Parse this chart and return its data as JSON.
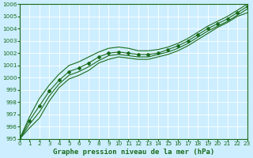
{
  "title": "Graphe pression niveau de la mer (hPa)",
  "bg_color": "#cceeff",
  "grid_color": "#ffffff",
  "line_color": "#1a6b1a",
  "xlim": [
    0,
    23
  ],
  "ylim": [
    995,
    1006
  ],
  "xticks": [
    0,
    1,
    2,
    3,
    4,
    5,
    6,
    7,
    8,
    9,
    10,
    11,
    12,
    13,
    14,
    15,
    16,
    17,
    18,
    19,
    20,
    21,
    22,
    23
  ],
  "yticks": [
    995,
    996,
    997,
    998,
    999,
    1000,
    1001,
    1002,
    1003,
    1004,
    1005,
    1006
  ],
  "series": [
    [
      995.0,
      995.9,
      996.7,
      998.1,
      999.2,
      999.9,
      1000.2,
      1000.6,
      1001.2,
      1001.5,
      1001.7,
      1001.6,
      1001.5,
      1001.5,
      1001.7,
      1001.9,
      1002.2,
      1002.6,
      1003.1,
      1003.6,
      1004.1,
      1004.5,
      1005.0,
      1005.3
    ],
    [
      995.0,
      996.2,
      997.2,
      998.5,
      999.5,
      1000.2,
      1000.5,
      1000.9,
      1001.4,
      1001.8,
      1001.9,
      1001.8,
      1001.7,
      1001.7,
      1001.9,
      1002.1,
      1002.4,
      1002.8,
      1003.3,
      1003.8,
      1004.2,
      1004.6,
      1005.1,
      1005.6
    ],
    [
      995.0,
      996.5,
      997.7,
      998.9,
      999.8,
      1000.5,
      1000.8,
      1001.2,
      1001.7,
      1002.0,
      1002.1,
      1002.0,
      1001.9,
      1001.9,
      1002.0,
      1002.3,
      1002.6,
      1003.0,
      1003.5,
      1004.0,
      1004.4,
      1004.8,
      1005.3,
      1005.8
    ],
    [
      995.0,
      996.8,
      998.3,
      999.4,
      1000.3,
      1001.0,
      1001.3,
      1001.7,
      1002.1,
      1002.4,
      1002.5,
      1002.4,
      1002.2,
      1002.2,
      1002.3,
      1002.5,
      1002.8,
      1003.2,
      1003.7,
      1004.2,
      1004.6,
      1005.0,
      1005.5,
      1006.0
    ]
  ],
  "marker_indices": [
    0,
    1,
    2,
    3,
    4,
    5,
    6,
    7,
    8,
    9,
    10,
    11,
    12,
    13,
    14,
    15,
    16,
    17,
    18,
    19,
    20,
    21,
    22,
    23
  ],
  "marker_series_idx": 2,
  "title_fontsize": 6.5
}
